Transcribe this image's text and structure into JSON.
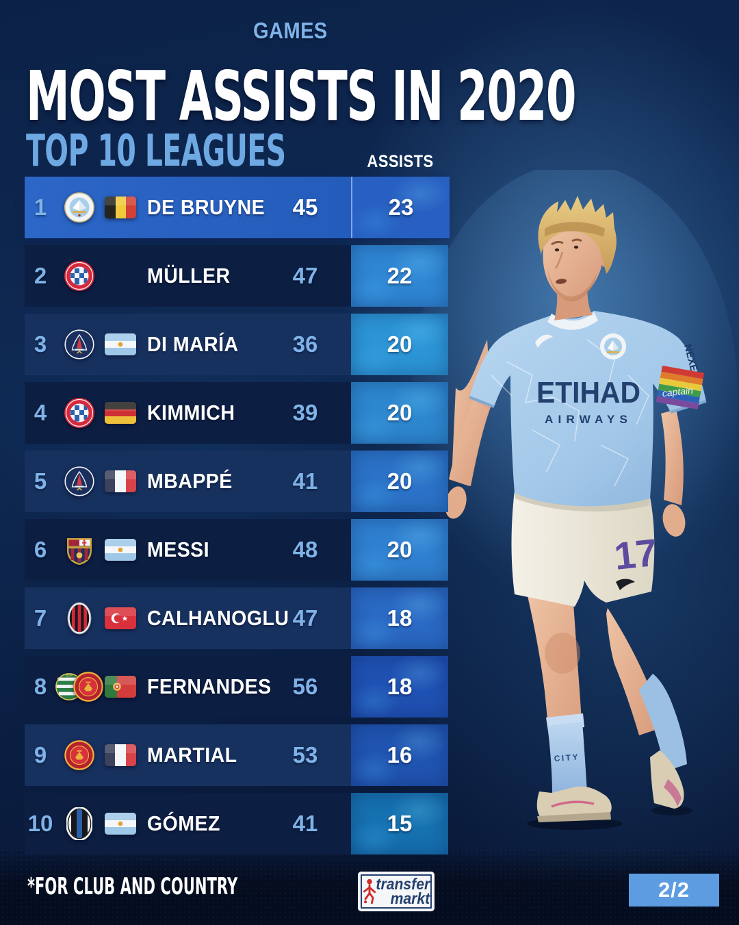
{
  "header": {
    "title": "MOST ASSISTS IN 2020",
    "subtitle": "TOP 10 LEAGUES"
  },
  "chart_data": {
    "type": "table",
    "title": "MOST ASSISTS IN 2020",
    "subtitle": "TOP 10 LEAGUES",
    "columns": [
      "GAMES",
      "ASSISTS"
    ],
    "rows": [
      {
        "rank": "1",
        "player": "DE BRUYNE",
        "club": "Manchester City",
        "club_icons": [
          "manchester-city-badge"
        ],
        "nationality": "Belgium",
        "flag_icon": "belgium-flag",
        "games": "45",
        "assists": "23",
        "highlighted": true,
        "assists_color": "#2760c2"
      },
      {
        "rank": "2",
        "player": "MÜLLER",
        "club": "Bayern München",
        "club_icons": [
          "bayern-munich-badge"
        ],
        "nationality": "",
        "flag_icon": null,
        "games": "47",
        "assists": "22",
        "highlighted": false,
        "assists_color": "#2f86d3"
      },
      {
        "rank": "3",
        "player": "DI MARÍA",
        "club": "Paris Saint-Germain",
        "club_icons": [
          "psg-badge"
        ],
        "nationality": "Argentina",
        "flag_icon": "argentina-flag",
        "games": "36",
        "assists": "20",
        "highlighted": false,
        "assists_color": "#2c95d6"
      },
      {
        "rank": "4",
        "player": "KIMMICH",
        "club": "Bayern München",
        "club_icons": [
          "bayern-munich-badge"
        ],
        "nationality": "Germany",
        "flag_icon": "germany-flag",
        "games": "39",
        "assists": "20",
        "highlighted": false,
        "assists_color": "#2d87cf"
      },
      {
        "rank": "5",
        "player": "MBAPPÉ",
        "club": "Paris Saint-Germain",
        "club_icons": [
          "psg-badge"
        ],
        "nationality": "France",
        "flag_icon": "france-flag",
        "games": "41",
        "assists": "20",
        "highlighted": false,
        "assists_color": "#2b73c8"
      },
      {
        "rank": "6",
        "player": "MESSI",
        "club": "FC Barcelona",
        "club_icons": [
          "barcelona-badge"
        ],
        "nationality": "Argentina",
        "flag_icon": "argentina-flag",
        "games": "48",
        "assists": "20",
        "highlighted": false,
        "assists_color": "#2f80d0"
      },
      {
        "rank": "7",
        "player": "CALHANOGLU",
        "club": "AC Milan",
        "club_icons": [
          "ac-milan-badge"
        ],
        "nationality": "Turkey",
        "flag_icon": "turkey-flag",
        "games": "47",
        "assists": "18",
        "highlighted": false,
        "assists_color": "#2a69c4"
      },
      {
        "rank": "8",
        "player": "FERNANDES",
        "club": "Sporting CP / Manchester United",
        "club_icons": [
          "sporting-cp-badge",
          "manchester-united-badge"
        ],
        "nationality": "Portugal",
        "flag_icon": "portugal-flag",
        "games": "56",
        "assists": "18",
        "highlighted": false,
        "assists_color": "#1f51b3"
      },
      {
        "rank": "9",
        "player": "MARTIAL",
        "club": "Manchester United",
        "club_icons": [
          "manchester-united-badge"
        ],
        "nationality": "France",
        "flag_icon": "france-flag",
        "games": "53",
        "assists": "16",
        "highlighted": false,
        "assists_color": "#2054b1"
      },
      {
        "rank": "10",
        "player": "GÓMEZ",
        "club": "Atalanta",
        "club_icons": [
          "atalanta-badge"
        ],
        "nationality": "Argentina",
        "flag_icon": "argentina-flag",
        "games": "41",
        "assists": "15",
        "highlighted": false,
        "assists_color": "#1671b0"
      }
    ]
  },
  "player_image": {
    "shirt_sponsor_line1": "ETIHAD",
    "shirt_sponsor_line2": "AIRWAYS",
    "shorts_number": "17",
    "sleeve_text": "NEXEN",
    "armband_text": "captain",
    "sock_text": "CITY"
  },
  "footer": {
    "footnote": "*FOR CLUB AND COUNTRY",
    "logo_line1": "transfer",
    "logo_line2": "markt",
    "page_indicator": "2/2"
  },
  "colors": {
    "accent_light_blue": "#6fa9e3",
    "rank_color": "#7fb3e8",
    "row_odd": "#17315f",
    "row_even": "#0c1e42",
    "highlight_row": "#2a63c4",
    "page_badge_bg": "#5d9ce1",
    "logo_text_color": "#24406e",
    "logo_runner_red": "#d22b2b",
    "title_color": "#ffffff"
  }
}
